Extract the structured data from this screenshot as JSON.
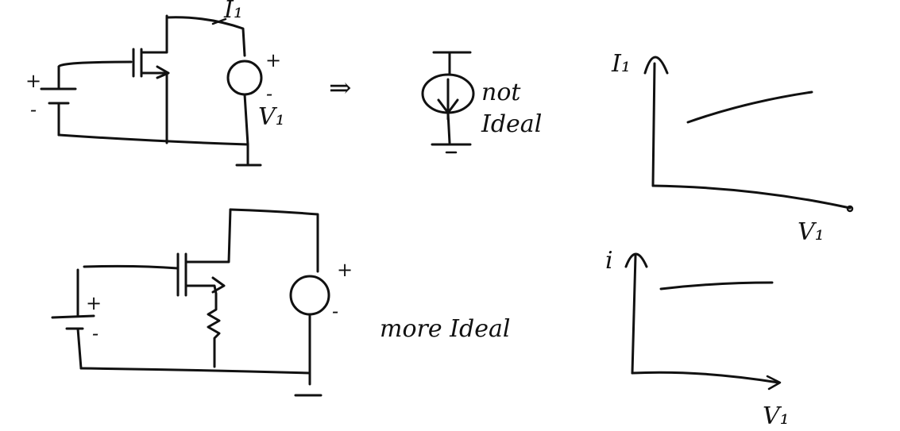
{
  "labels": {
    "top_current": "I₁",
    "top_plus": "+",
    "top_minus": "-",
    "top_voltage": "V₁",
    "battery1_plus": "+",
    "battery1_minus": "-",
    "arrow": "⇒",
    "source_note_line1": "not",
    "source_note_line2": "Ideal",
    "graph1_ylabel": "I₁",
    "graph1_xlabel": "V₁",
    "battery2_plus": "+",
    "battery2_minus": "-",
    "bottom_plus": "+",
    "bottom_minus": "-",
    "bottom_note": "more Ideal",
    "graph2_ylabel": "i",
    "graph2_xlabel": "V₁"
  },
  "graphs": [
    {
      "name": "not-ideal",
      "curve": "sloped"
    },
    {
      "name": "more-ideal",
      "curve": "flat"
    }
  ]
}
